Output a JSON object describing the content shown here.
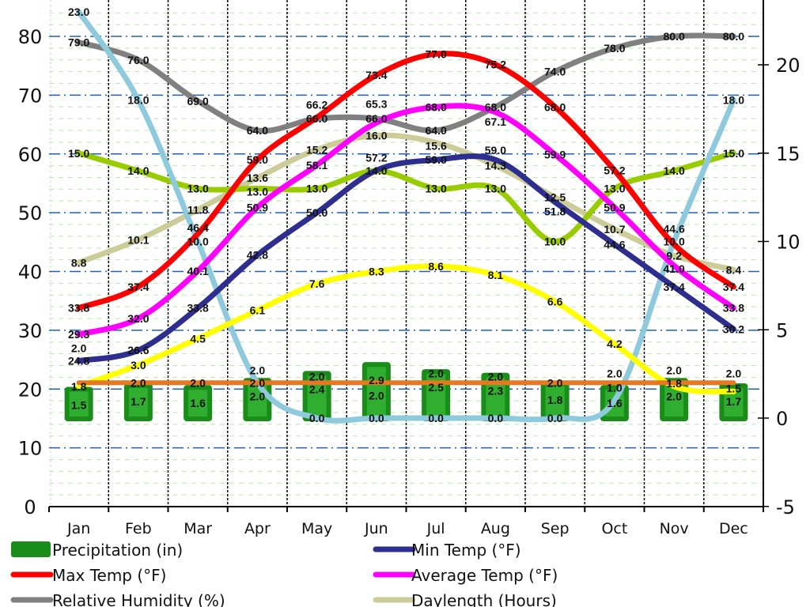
{
  "chart_data": {
    "type": "bar+line",
    "categories": [
      "Jan",
      "Feb",
      "Mar",
      "Apr",
      "May",
      "Jun",
      "Jul",
      "Aug",
      "Sep",
      "Oct",
      "Nov",
      "Dec"
    ],
    "y_left": {
      "range": [
        0,
        86
      ],
      "ticks": [
        0,
        10,
        20,
        30,
        40,
        50,
        60,
        70,
        80
      ]
    },
    "y_right": {
      "range": [
        -5,
        23.7
      ],
      "ticks": [
        -5,
        0,
        5,
        10,
        15,
        20
      ]
    },
    "grid": true,
    "legend_position": "bottom",
    "series": [
      {
        "name": "Precipitation (in)",
        "type": "bar",
        "axis": "right",
        "color": "#1a8c1a",
        "values": [
          1.5,
          1.7,
          1.6,
          2.0,
          2.4,
          2.9,
          2.5,
          2.3,
          1.8,
          1.6,
          2.0,
          1.7
        ]
      },
      {
        "name": "Min Temp (°F)",
        "type": "line",
        "axis": "left",
        "color": "#2e2e8f",
        "values": [
          24.8,
          26.6,
          33.8,
          42.8,
          50.0,
          57.2,
          59.0,
          59.0,
          51.8,
          44.6,
          37.4,
          30.2
        ]
      },
      {
        "name": "Max Temp (°F)",
        "type": "line",
        "axis": "left",
        "color": "#ff0000",
        "values": [
          33.8,
          37.4,
          46.4,
          59.0,
          66.2,
          73.4,
          77.0,
          75.2,
          68.0,
          57.2,
          44.6,
          37.4
        ]
      },
      {
        "name": "Average Temp (°F)",
        "type": "line",
        "axis": "left",
        "color": "#ff00ff",
        "values": [
          29.3,
          32.0,
          40.1,
          50.9,
          58.1,
          65.3,
          68.0,
          67.1,
          59.9,
          50.9,
          41.0,
          33.8
        ]
      },
      {
        "name": "Relative Humidity (%)",
        "type": "line",
        "axis": "left",
        "color": "#808080",
        "values": [
          79.0,
          76.0,
          69.0,
          64.0,
          66.0,
          66.0,
          64.0,
          68.0,
          74.0,
          78.0,
          80.0,
          80.0
        ]
      },
      {
        "name": "Daylength (Hours)",
        "type": "line",
        "axis": "right",
        "color": "#cccc99",
        "values": [
          8.8,
          10.1,
          11.8,
          13.6,
          15.2,
          16.0,
          15.6,
          14.3,
          12.5,
          10.7,
          9.2,
          8.4
        ]
      },
      {
        "type": "line",
        "axis": "right",
        "color": "#99cc00",
        "values": [
          15.0,
          14.0,
          13.0,
          13.0,
          13.0,
          14.0,
          13.0,
          13.0,
          10.0,
          13.0,
          14.0,
          15.0
        ]
      },
      {
        "type": "line",
        "axis": "right",
        "color": "#ffff00",
        "values": [
          1.8,
          3.0,
          4.5,
          6.1,
          7.6,
          8.3,
          8.6,
          8.1,
          6.6,
          4.2,
          1.8,
          1.5
        ]
      },
      {
        "type": "line",
        "axis": "right",
        "color": "#8ec9dc",
        "values": [
          23.0,
          18.0,
          10.0,
          2.0,
          0.0,
          0.0,
          0.0,
          0.0,
          0.0,
          1.0,
          10.0,
          18.0
        ]
      },
      {
        "type": "line",
        "axis": "right",
        "color": "#e87722",
        "values": [
          2.0,
          2.0,
          2.0,
          2.0,
          2.0,
          2.0,
          2.0,
          2.0,
          2.0,
          2.0,
          2.0,
          2.0
        ]
      }
    ]
  }
}
